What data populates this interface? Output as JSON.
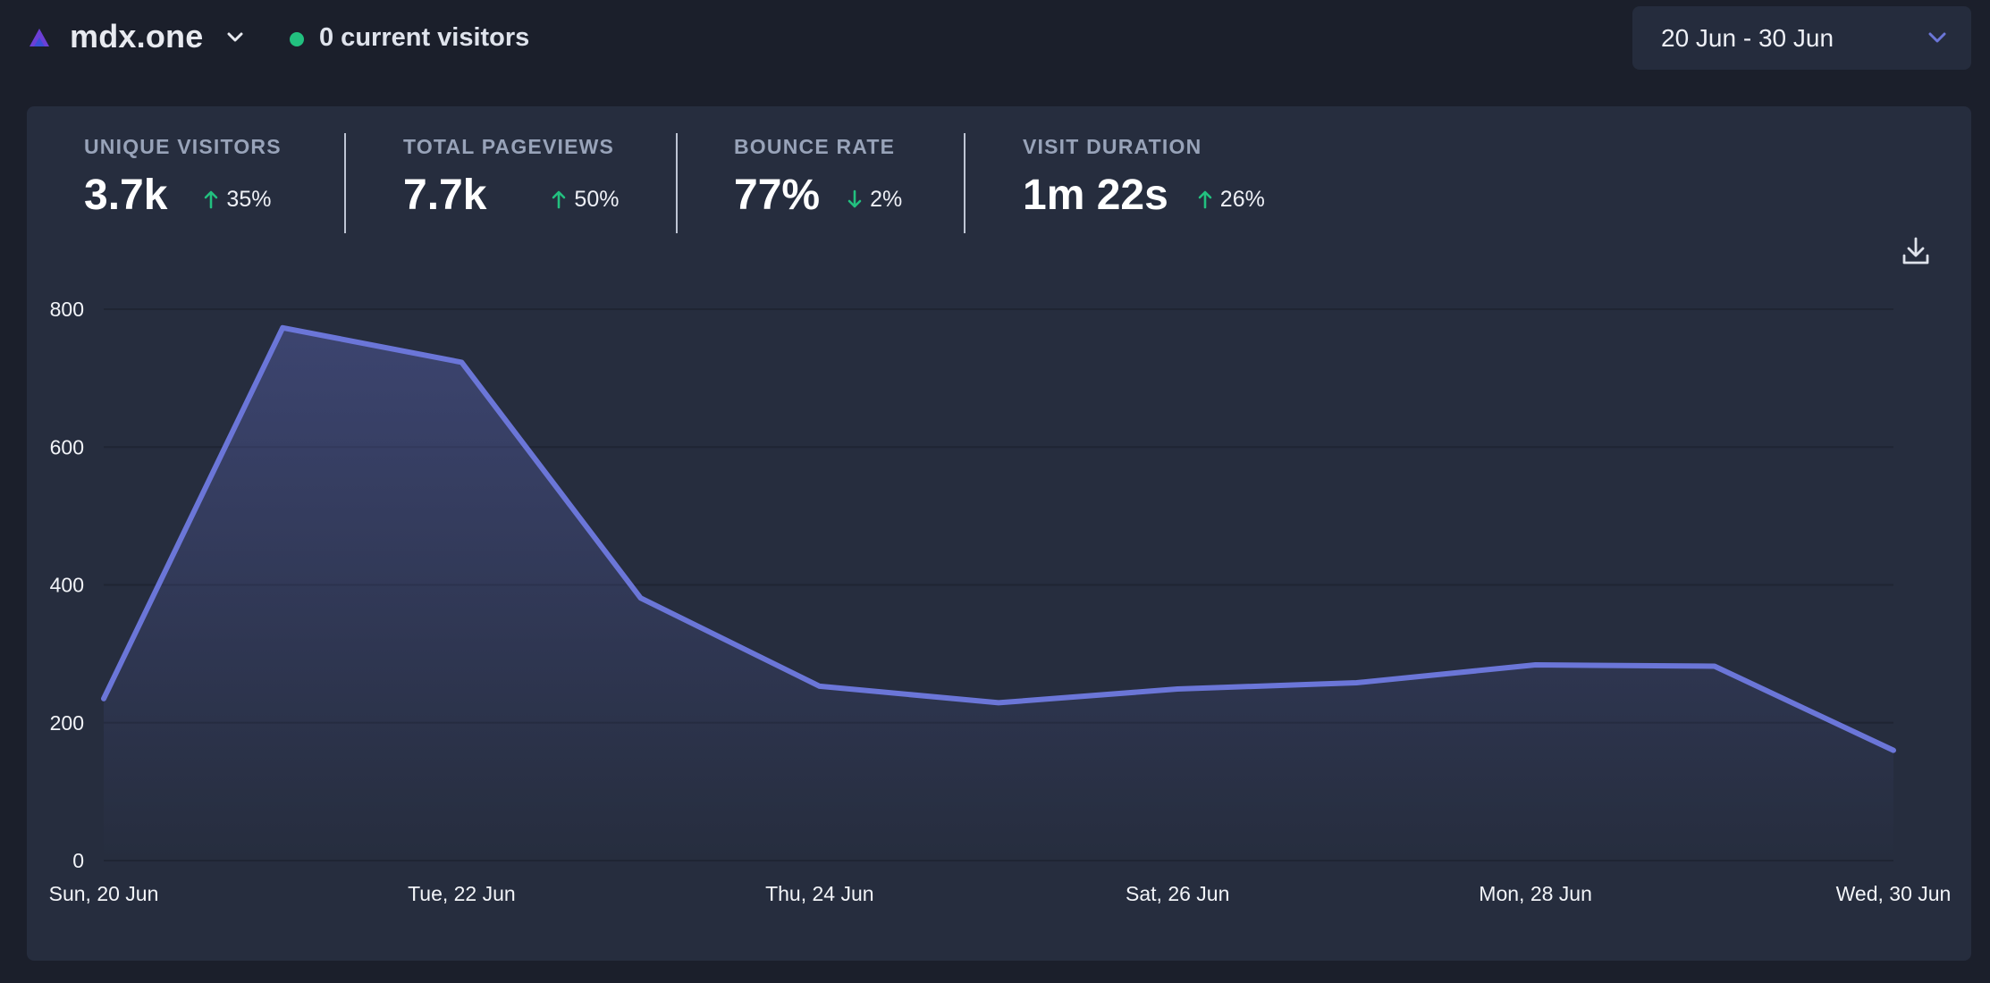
{
  "header": {
    "site_name": "mdx.one",
    "current_visitors": "0 current visitors",
    "date_range": "20 Jun - 30 Jun"
  },
  "stats": [
    {
      "label": "UNIQUE VISITORS",
      "value": "3.7k",
      "change": "35%",
      "direction": "up"
    },
    {
      "label": "TOTAL PAGEVIEWS",
      "value": "7.7k",
      "change": "50%",
      "direction": "up"
    },
    {
      "label": "BOUNCE RATE",
      "value": "77%",
      "change": "2%",
      "direction": "down"
    },
    {
      "label": "VISIT DURATION",
      "value": "1m 22s",
      "change": "26%",
      "direction": "up"
    }
  ],
  "icons": {
    "logo": "mdx-logo-icon",
    "site_menu": "chevron-down-icon",
    "date_menu": "chevron-down-icon",
    "download": "download-icon",
    "trend_up": "arrow-up-icon",
    "trend_down": "arrow-down-icon"
  },
  "colors": {
    "background": "#1b1f2b",
    "card": "#262d3e",
    "line": "#6b76d8",
    "live": "#22c07f",
    "trend": "#22c07f",
    "logo_primary": "#6c3fd6",
    "logo_secondary": "#3a4fd8"
  },
  "chart_data": {
    "type": "area",
    "x": [
      "20 Jun",
      "21 Jun",
      "22 Jun",
      "23 Jun",
      "24 Jun",
      "25 Jun",
      "26 Jun",
      "27 Jun",
      "28 Jun",
      "29 Jun",
      "30 Jun"
    ],
    "x_tick_labels": [
      "Sun, 20 Jun",
      "Tue, 22 Jun",
      "Thu, 24 Jun",
      "Sat, 26 Jun",
      "Mon, 28 Jun",
      "Wed, 30 Jun"
    ],
    "x_tick_indices": [
      0,
      2,
      4,
      6,
      8,
      10
    ],
    "y_ticks": [
      0,
      200,
      400,
      600,
      800
    ],
    "values": [
      235,
      773,
      723,
      381,
      253,
      229,
      249,
      258,
      284,
      282,
      160
    ],
    "ylim": [
      0,
      800
    ],
    "grid": true,
    "title": "",
    "xlabel": "",
    "ylabel": ""
  }
}
